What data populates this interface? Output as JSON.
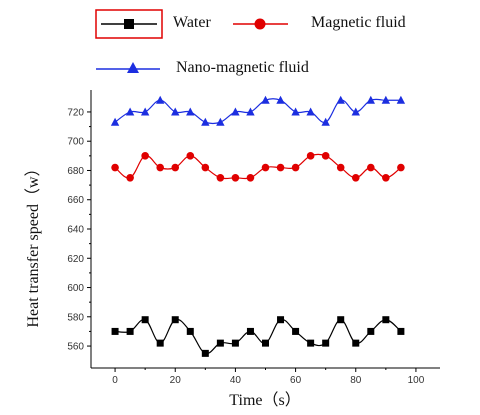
{
  "chart_data": {
    "type": "line",
    "title": "",
    "xlabel": "Time（s）",
    "ylabel": "Heat transfer speed（w）",
    "xlim": [
      -8,
      108
    ],
    "ylim": [
      545,
      735
    ],
    "x_ticks": [
      0,
      20,
      40,
      60,
      80,
      100
    ],
    "y_ticks": [
      560,
      580,
      600,
      620,
      640,
      660,
      680,
      700,
      720
    ],
    "x": [
      0,
      5,
      10,
      15,
      20,
      25,
      30,
      35,
      40,
      45,
      50,
      55,
      60,
      65,
      70,
      75,
      80,
      85,
      90,
      95
    ],
    "legend_position": "top",
    "grid": false,
    "series": [
      {
        "name": "Water",
        "color": "#000000",
        "marker": "square",
        "values": [
          570,
          570,
          578,
          562,
          578,
          570,
          555,
          562,
          562,
          570,
          562,
          578,
          570,
          562,
          562,
          578,
          562,
          570,
          578,
          570
        ]
      },
      {
        "name": "Magnetic fluid",
        "color": "#e00000",
        "marker": "circle",
        "values": [
          682,
          675,
          690,
          682,
          682,
          690,
          682,
          675,
          675,
          675,
          682,
          682,
          682,
          690,
          690,
          682,
          675,
          682,
          675,
          682
        ]
      },
      {
        "name": "Nano-magnetic fluid",
        "color": "#1c2ee0",
        "marker": "triangle",
        "values": [
          713,
          720,
          720,
          728,
          720,
          720,
          713,
          713,
          720,
          720,
          728,
          728,
          720,
          720,
          713,
          728,
          720,
          728,
          728,
          728
        ]
      }
    ]
  }
}
